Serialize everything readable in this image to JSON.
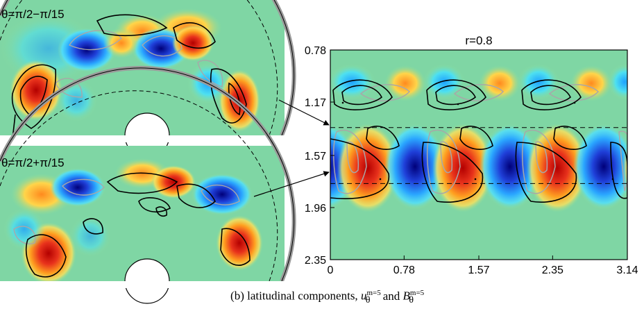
{
  "figure": {
    "caption_text": "(b) latitudinal components, ",
    "caption_u": "u",
    "caption_B": "B",
    "caption_and": " and ",
    "caption_sub": "θ",
    "caption_sup": "m=5"
  },
  "panels": {
    "top_half_disk_label": "θ=π/2−π/15",
    "bottom_half_disk_label": "θ=π/2+π/15"
  },
  "colors": {
    "positive": "#d7191c",
    "negative": "#1f2fbf",
    "background_field": "#7fd6a4",
    "positive_contour": "#000000",
    "negative_contour": "#a8a8a8",
    "shell_rim": "#9a9a9a"
  },
  "chart_data": {
    "type": "heatmap",
    "title": "r=0.8",
    "xlabel": "",
    "ylabel": "",
    "x_ticks": [
      "0",
      "0.78",
      "1.57",
      "2.35",
      "3.14"
    ],
    "y_ticks": [
      "0.78",
      "1.17",
      "1.57",
      "1.96",
      "2.35"
    ],
    "xlim": [
      0,
      3.14
    ],
    "ylim": [
      0.78,
      2.35
    ],
    "y_reversed": true,
    "dashed_lines_theta": [
      1.361,
      1.78
    ]
  }
}
